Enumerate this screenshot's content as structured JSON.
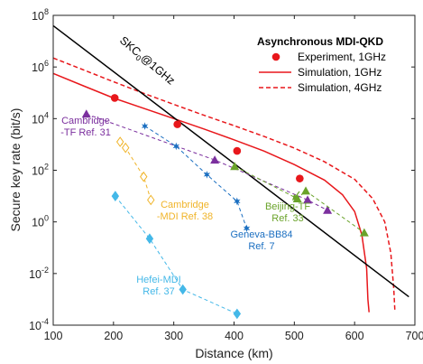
{
  "chart_data": {
    "type": "scatter",
    "title": "Asynchronous MDI-QKD",
    "xlabel": "Distance (km)",
    "ylabel": "Secure key rate (bit/s)",
    "x_scale": "linear",
    "y_scale": "log",
    "xlim": [
      100,
      700
    ],
    "ylim_exp": [
      -4,
      8
    ],
    "x_ticks": [
      "100",
      "200",
      "300",
      "400",
      "500",
      "600",
      "700"
    ],
    "y_ticks": [
      {
        "base": "10",
        "exp": "-4"
      },
      {
        "base": "10",
        "exp": "-2"
      },
      {
        "base": "10",
        "exp": "0"
      },
      {
        "base": "10",
        "exp": "2"
      },
      {
        "base": "10",
        "exp": "4"
      },
      {
        "base": "10",
        "exp": "6"
      },
      {
        "base": "10",
        "exp": "8"
      }
    ],
    "grid": false,
    "legend_position": "top-right",
    "legend": [
      {
        "label": "Experiment, 1GHz",
        "style": "marker",
        "color": "#e8171b"
      },
      {
        "label": "Simulation, 1GHz",
        "style": "solid",
        "color": "#e8171b"
      },
      {
        "label": "Simulation, 4GHz",
        "style": "dashed",
        "color": "#e8171b"
      }
    ],
    "skc_line": {
      "label_main": "SKC",
      "label_sub": "0",
      "label_suffix": "@1GHz",
      "color": "#000000",
      "points": [
        [
          100,
          7.6
        ],
        [
          690,
          -2.9
        ]
      ]
    },
    "series": [
      {
        "key": "sim1",
        "color": "#e8171b",
        "line": "solid",
        "x": [
          100,
          150,
          200,
          250,
          300,
          350,
          400,
          450,
          500,
          550,
          580,
          600,
          612,
          620,
          622,
          624
        ],
        "log_y": [
          5.75,
          5.27,
          4.8,
          4.4,
          4.0,
          3.6,
          3.18,
          2.74,
          2.22,
          1.62,
          1.05,
          0.4,
          -0.5,
          -1.8,
          -3.0,
          -3.5
        ]
      },
      {
        "key": "sim4",
        "color": "#e8171b",
        "line": "dashed",
        "x": [
          100,
          150,
          200,
          250,
          300,
          350,
          400,
          450,
          500,
          550,
          600,
          630,
          650,
          660,
          665,
          667
        ],
        "log_y": [
          6.35,
          5.89,
          5.43,
          4.98,
          4.55,
          4.13,
          3.73,
          3.31,
          2.86,
          2.33,
          1.65,
          0.9,
          0.0,
          -1.2,
          -2.6,
          -3.5
        ]
      },
      {
        "key": "exp",
        "color": "#e8171b",
        "line": "none",
        "marker": "circle",
        "x": [
          202,
          306,
          405,
          509
        ],
        "log_y": [
          4.8,
          3.78,
          2.75,
          1.68
        ]
      },
      {
        "key": "cambridge_tf",
        "color": "#7b2f9e",
        "line": "dashed",
        "marker": "triangle",
        "x": [
          155,
          368,
          522,
          555
        ],
        "log_y": [
          4.18,
          2.4,
          0.85,
          0.45
        ]
      },
      {
        "key": "beijing_tf",
        "color": "#6aa32a",
        "line": "dashed",
        "marker": "triangle",
        "x": [
          401,
          505,
          519,
          616
        ],
        "log_y": [
          2.15,
          0.9,
          1.2,
          -0.42
        ]
      },
      {
        "key": "geneva",
        "color": "#1b6fc1",
        "line": "dashed",
        "marker": "star",
        "x": [
          252,
          304,
          355,
          405,
          421
        ],
        "log_y": [
          3.71,
          2.93,
          1.83,
          0.8,
          -0.25
        ]
      },
      {
        "key": "cambridge_mdi",
        "color": "#f0b429",
        "line": "dashed",
        "marker": "diamond-open",
        "x": [
          211,
          220,
          250,
          262
        ],
        "log_y": [
          3.1,
          2.87,
          1.75,
          0.85
        ]
      },
      {
        "key": "hefei",
        "color": "#44b8e8",
        "line": "dashed",
        "marker": "diamond",
        "x": [
          203,
          260,
          315,
          405
        ],
        "log_y": [
          1.0,
          -0.65,
          -2.62,
          -3.56
        ]
      }
    ],
    "annotations": [
      {
        "series": "cambridge_tf",
        "lines": [
          "Cambridge",
          "-TF Ref. 31"
        ]
      },
      {
        "series": "cambridge_mdi",
        "lines": [
          "Cambridge",
          "-MDI Ref. 38"
        ]
      },
      {
        "series": "geneva",
        "lines": [
          "Geneva-BB84",
          "Ref. 7"
        ]
      },
      {
        "series": "beijing_tf",
        "lines": [
          "Beijing-TF",
          "Ref. 33"
        ]
      },
      {
        "series": "hefei",
        "lines": [
          "Hefei-MDI",
          "Ref. 37"
        ]
      }
    ]
  }
}
